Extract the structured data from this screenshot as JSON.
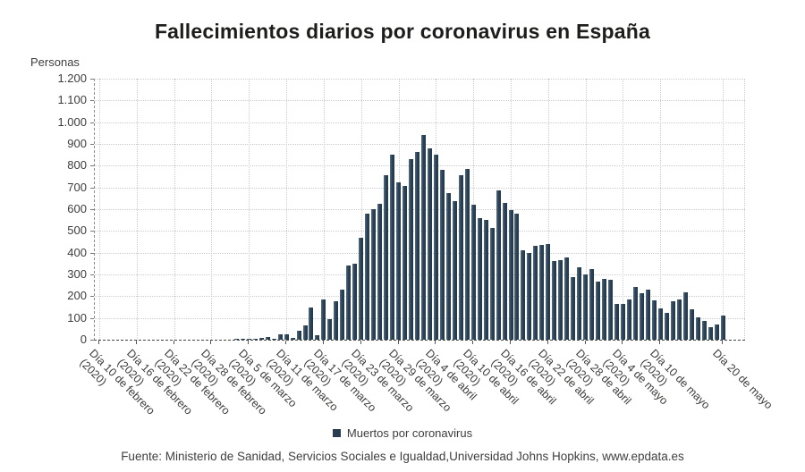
{
  "title": "Fallecimientos diarios por coronavirus en España",
  "y_axis": {
    "label": "Personas",
    "tick_labels": [
      "0",
      "100",
      "200",
      "300",
      "400",
      "500",
      "600",
      "700",
      "800",
      "900",
      "1.000",
      "1.100",
      "1.200"
    ],
    "max": 1200,
    "step": 100
  },
  "x_axis": {
    "ticks": [
      {
        "day": 0,
        "label": "Día 10 de febrero",
        "year": "(2020)"
      },
      {
        "day": 6,
        "label": "Día 16 de febrero",
        "year": "(2020)"
      },
      {
        "day": 12,
        "label": "Día 22 de febrero",
        "year": "(2020)"
      },
      {
        "day": 18,
        "label": "Día 28 de febrero",
        "year": "(2020)"
      },
      {
        "day": 24,
        "label": "Día 5 de marzo",
        "year": "(2020)"
      },
      {
        "day": 30,
        "label": "Día 11 de marzo",
        "year": "(2020)"
      },
      {
        "day": 36,
        "label": "Día 17 de marzo",
        "year": "(2020)"
      },
      {
        "day": 42,
        "label": "Día 23 de marzo",
        "year": "(2020)"
      },
      {
        "day": 48,
        "label": "Día 29 de marzo",
        "year": "(2020)"
      },
      {
        "day": 54,
        "label": "Día 4 de abril",
        "year": "(2020)"
      },
      {
        "day": 60,
        "label": "Día 10 de abril",
        "year": "(2020)"
      },
      {
        "day": 66,
        "label": "Día 16 de abril",
        "year": "(2020)"
      },
      {
        "day": 72,
        "label": "Día 22 de abril",
        "year": "(2020)"
      },
      {
        "day": 78,
        "label": "Día 28 de abril",
        "year": "(2020)"
      },
      {
        "day": 84,
        "label": "Día 4 de mayo",
        "year": "(2020)"
      },
      {
        "day": 90,
        "label": "Día 10 de mayo",
        "year": "(2020)"
      },
      {
        "day": 100,
        "label": "Día 20 de mayo",
        "year": ""
      }
    ]
  },
  "legend": {
    "label": "Muertos por coronavirus",
    "marker_color": "#2a3d50"
  },
  "source": "Fuente: Ministerio de Sanidad, Servicios Sociales e Igualdad,Universidad Johns Hopkins, www.epdata.es",
  "colors": {
    "bar": "#2c4257",
    "grid": "#c9cdd1",
    "text": "#3c3c3b",
    "title": "#1d1d1b"
  },
  "chart_data": {
    "type": "bar",
    "title": "Fallecimientos diarios por coronavirus en España",
    "xlabel": "",
    "ylabel": "Personas",
    "ylim": [
      0,
      1200
    ],
    "grid": true,
    "legend_position": "bottom",
    "series_name": "Muertos por coronavirus",
    "x_start": "Día 10 de febrero (2020)",
    "x_end": "Día 20 de mayo (2020)",
    "x_is_daily": true,
    "values": [
      0,
      0,
      0,
      0,
      0,
      0,
      0,
      0,
      0,
      0,
      0,
      0,
      0,
      0,
      0,
      0,
      0,
      0,
      0,
      0,
      0,
      0,
      1,
      2,
      3,
      5,
      10,
      12,
      6,
      25,
      25,
      10,
      40,
      65,
      150,
      20,
      185,
      95,
      175,
      230,
      340,
      350,
      470,
      580,
      600,
      625,
      755,
      850,
      725,
      705,
      830,
      865,
      940,
      880,
      850,
      780,
      675,
      635,
      755,
      785,
      620,
      560,
      550,
      515,
      685,
      630,
      595,
      580,
      410,
      400,
      430,
      435,
      440,
      360,
      367,
      378,
      288,
      331,
      301,
      325,
      268,
      281,
      276,
      164,
      164,
      185,
      244,
      213,
      229,
      179,
      143,
      123,
      176,
      184,
      217,
      138,
      102,
      87,
      59,
      69,
      110
    ]
  }
}
